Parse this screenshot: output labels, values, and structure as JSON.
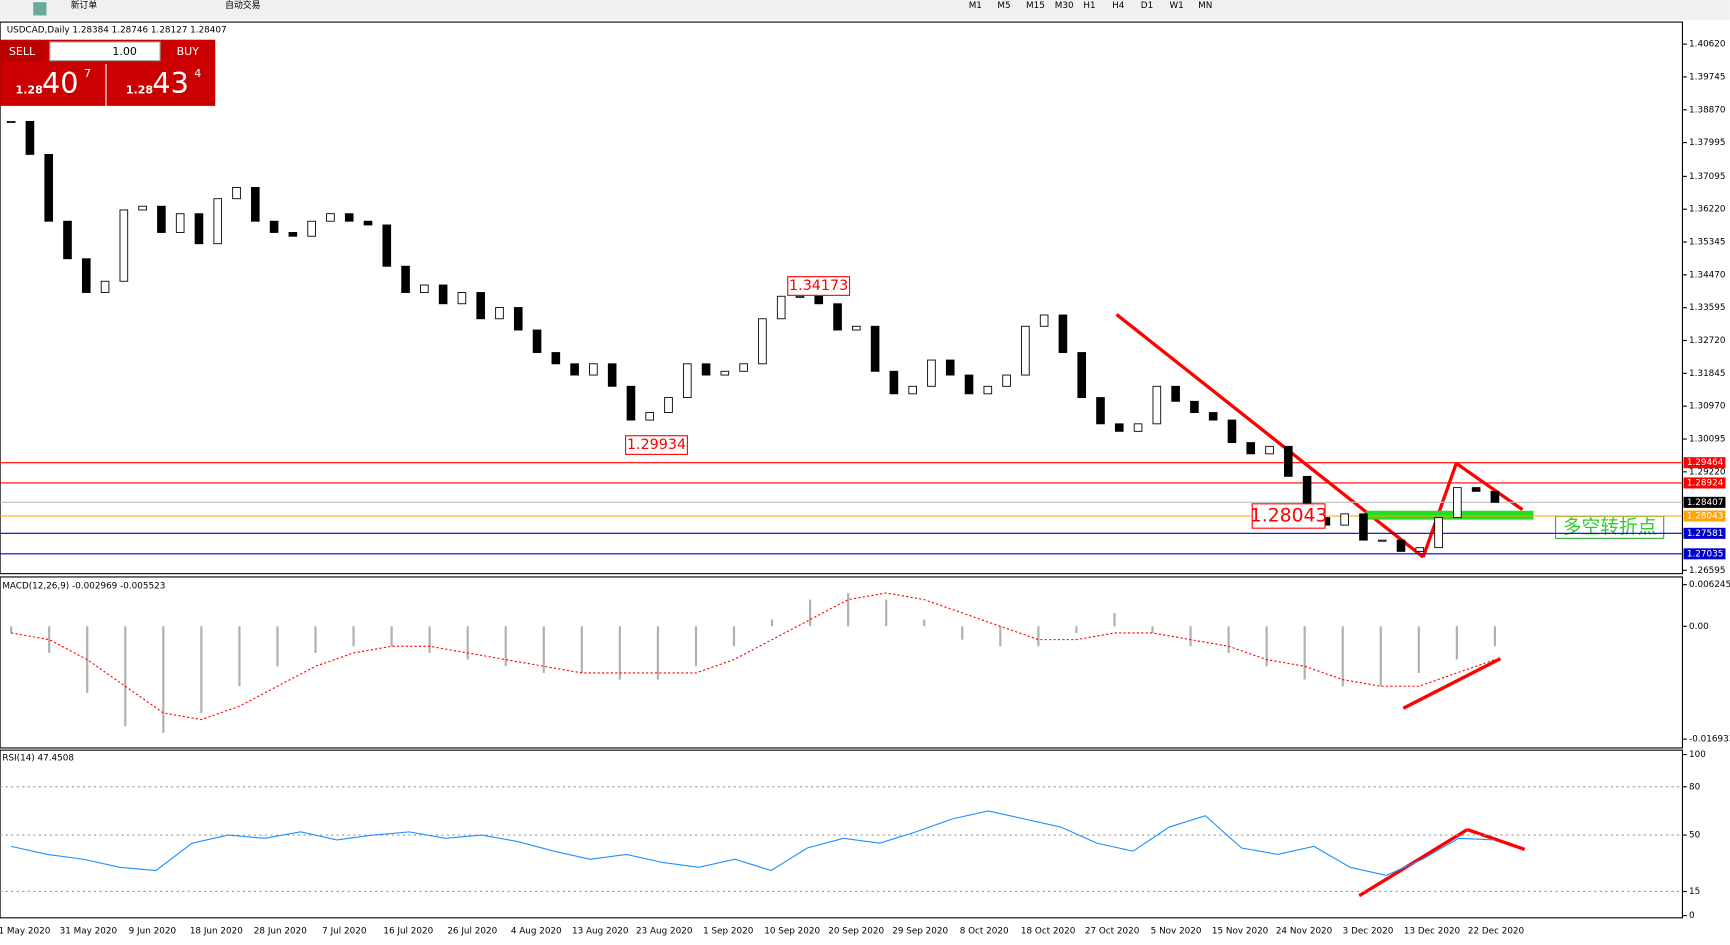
{
  "toolbar": {
    "buttons": [
      "新订单",
      "自动交易"
    ],
    "timeframes": [
      "M1",
      "M5",
      "M15",
      "M30",
      "H1",
      "H4",
      "D1",
      "W1",
      "MN"
    ]
  },
  "order_panel": {
    "sell": "SELL",
    "buy": "BUY",
    "lot": "1.00",
    "bid": {
      "big": "1.28",
      "main": "40",
      "small": "7"
    },
    "ask": {
      "big": "1.28",
      "main": "43",
      "small": "4"
    }
  },
  "time_axis": [
    "1 May 2020",
    "31 May 2020",
    "9 Jun 2020",
    "18 Jun 2020",
    "28 Jun 2020",
    "7 Jul 2020",
    "16 Jul 2020",
    "26 Jul 2020",
    "4 Aug 2020",
    "13 Aug 2020",
    "23 Aug 2020",
    "1 Sep 2020",
    "10 Sep 2020",
    "20 Sep 2020",
    "29 Sep 2020",
    "8 Oct 2020",
    "18 Oct 2020",
    "27 Oct 2020",
    "5 Nov 2020",
    "15 Nov 2020",
    "24 Nov 2020",
    "3 Dec 2020",
    "13 Dec 2020",
    "22 Dec 2020"
  ],
  "chart_data": [
    {
      "type": "candlestick",
      "title": "USDCAD,Daily  1.28384 1.28746 1.28127 1.28407",
      "values": [
        1.3856,
        1.3768,
        1.359,
        1.349,
        1.34,
        1.343,
        1.362,
        1.363,
        1.356,
        1.361,
        1.353,
        1.365,
        1.368,
        1.359,
        1.356,
        1.355,
        1.359,
        1.361,
        1.359,
        1.358,
        1.347,
        1.34,
        1.342,
        1.337,
        1.34,
        1.333,
        1.336,
        1.33,
        1.324,
        1.321,
        1.318,
        1.321,
        1.315,
        1.306,
        1.308,
        1.312,
        1.321,
        1.318,
        1.319,
        1.321,
        1.333,
        1.339,
        1.339,
        1.337,
        1.33,
        1.331,
        1.319,
        1.313,
        1.315,
        1.322,
        1.318,
        1.313,
        1.315,
        1.318,
        1.331,
        1.334,
        1.324,
        1.312,
        1.305,
        1.303,
        1.305,
        1.315,
        1.311,
        1.308,
        1.306,
        1.3,
        1.297,
        1.299,
        1.291,
        1.28,
        1.278,
        1.281,
        1.274,
        1.274,
        1.271,
        1.272,
        1.28,
        1.288,
        1.287,
        1.28407
      ],
      "ylim": [
        1.26595,
        1.4062
      ],
      "yticks": [
        {
          "value": 1.4062,
          "label": "1.40620"
        },
        1.39745,
        {
          "value": 1.3887,
          "label": "1.38870"
        },
        1.37995,
        1.37095,
        {
          "value": 1.3622,
          "label": "1.36220"
        },
        1.35345,
        {
          "value": 1.3447,
          "label": "1.34470"
        },
        1.33595,
        {
          "value": 1.3272,
          "label": "1.32720"
        },
        1.31845,
        {
          "value": 1.3097,
          "label": "1.30970"
        },
        1.30095,
        {
          "value": 1.2922,
          "label": "1.29220"
        },
        1.26595
      ],
      "levels": [
        {
          "value": 1.29464,
          "color": "#ff0000"
        },
        {
          "value": 1.28924,
          "color": "#ff0000"
        },
        {
          "value": 1.28407,
          "color": "#c0c0c0"
        },
        {
          "value": 1.28043,
          "color": "#ffa500"
        },
        {
          "value": 1.27581,
          "color": "#0000cd"
        },
        {
          "value": 1.27035,
          "color": "#0000cd"
        }
      ],
      "annotations": [
        1.34173,
        1.29934,
        1.28043
      ],
      "note": "多空转折点"
    },
    {
      "type": "macd",
      "title": "MACD(12,26,9) -0.002969 -0.005523",
      "values": [
        -0.001,
        -0.004,
        -0.01,
        -0.015,
        -0.016,
        -0.013,
        -0.009,
        -0.006,
        -0.004,
        -0.003,
        -0.003,
        -0.004,
        -0.005,
        -0.006,
        -0.007,
        -0.007,
        -0.008,
        -0.008,
        -0.006,
        -0.003,
        0.001,
        0.004,
        0.005,
        0.004,
        0.001,
        -0.002,
        -0.003,
        -0.003,
        -0.001,
        0.002,
        -0.001,
        -0.003,
        -0.004,
        -0.006,
        -0.008,
        -0.009,
        -0.009,
        -0.007,
        -0.005,
        -0.003
      ],
      "signal": [
        -0.001,
        -0.002,
        -0.005,
        -0.009,
        -0.013,
        -0.014,
        -0.012,
        -0.009,
        -0.006,
        -0.004,
        -0.003,
        -0.003,
        -0.004,
        -0.005,
        -0.006,
        -0.007,
        -0.007,
        -0.007,
        -0.007,
        -0.005,
        -0.002,
        0.001,
        0.004,
        0.005,
        0.004,
        0.002,
        0,
        -0.002,
        -0.002,
        -0.001,
        -0.001,
        -0.002,
        -0.003,
        -0.005,
        -0.006,
        -0.008,
        -0.009,
        -0.009,
        -0.007,
        -0.005
      ],
      "ylim": [
        -0.016933,
        0.006245
      ],
      "yticks": [
        0.006245,
        {
          "value": 0,
          "label": "0.00"
        },
        -0.016933
      ]
    },
    {
      "type": "line",
      "title": "RSI(14) 47.4508",
      "color": "#1e90ff",
      "values": [
        43,
        38,
        35,
        30,
        28,
        45,
        50,
        48,
        52,
        47,
        50,
        52,
        48,
        50,
        46,
        40,
        35,
        38,
        33,
        30,
        35,
        28,
        42,
        48,
        45,
        52,
        60,
        65,
        60,
        55,
        45,
        40,
        55,
        62,
        42,
        38,
        43,
        30,
        25,
        35,
        48,
        47
      ],
      "ylim": [
        0,
        100
      ],
      "yticks": [
        0,
        15,
        50,
        80,
        100
      ],
      "levels": [
        15,
        50,
        80
      ]
    }
  ]
}
